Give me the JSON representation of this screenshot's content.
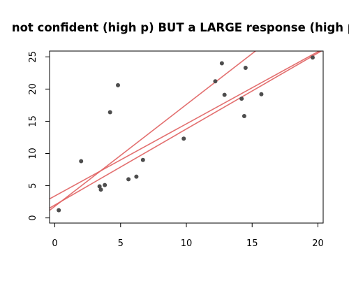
{
  "chart_data": {
    "type": "scatter",
    "title": "not confident (high p) BUT a LARGE response (high β)",
    "xlabel": "",
    "ylabel": "",
    "xlim": [
      -0.4,
      20.4
    ],
    "ylim": [
      -0.8,
      25.9
    ],
    "x_ticks": [
      0,
      5,
      10,
      15,
      20
    ],
    "y_ticks": [
      0,
      5,
      10,
      15,
      20,
      25
    ],
    "x_tick_labels": [
      "0",
      "5",
      "10",
      "15",
      "20"
    ],
    "y_tick_labels": [
      "0",
      "5",
      "10",
      "15",
      "20",
      "25"
    ],
    "grid": false,
    "point_color": "#4d4d4d",
    "line_color": "#e06060",
    "points": [
      {
        "x": 0.3,
        "y": 1.2
      },
      {
        "x": 2.0,
        "y": 8.8
      },
      {
        "x": 3.4,
        "y": 4.9
      },
      {
        "x": 3.5,
        "y": 4.4
      },
      {
        "x": 3.8,
        "y": 5.1
      },
      {
        "x": 4.2,
        "y": 16.4
      },
      {
        "x": 4.8,
        "y": 20.6
      },
      {
        "x": 5.6,
        "y": 6.0
      },
      {
        "x": 6.2,
        "y": 6.4
      },
      {
        "x": 6.7,
        "y": 9.0
      },
      {
        "x": 9.8,
        "y": 12.3
      },
      {
        "x": 12.2,
        "y": 21.2
      },
      {
        "x": 12.7,
        "y": 24.0
      },
      {
        "x": 12.9,
        "y": 19.1
      },
      {
        "x": 14.2,
        "y": 18.5
      },
      {
        "x": 14.4,
        "y": 15.8
      },
      {
        "x": 14.5,
        "y": 23.3
      },
      {
        "x": 15.7,
        "y": 19.2
      },
      {
        "x": 19.6,
        "y": 24.9
      }
    ],
    "lines": [
      {
        "intercept": 1.8,
        "slope": 1.58
      },
      {
        "intercept": 2.0,
        "slope": 1.18
      },
      {
        "intercept": 3.4,
        "slope": 1.12
      }
    ]
  }
}
